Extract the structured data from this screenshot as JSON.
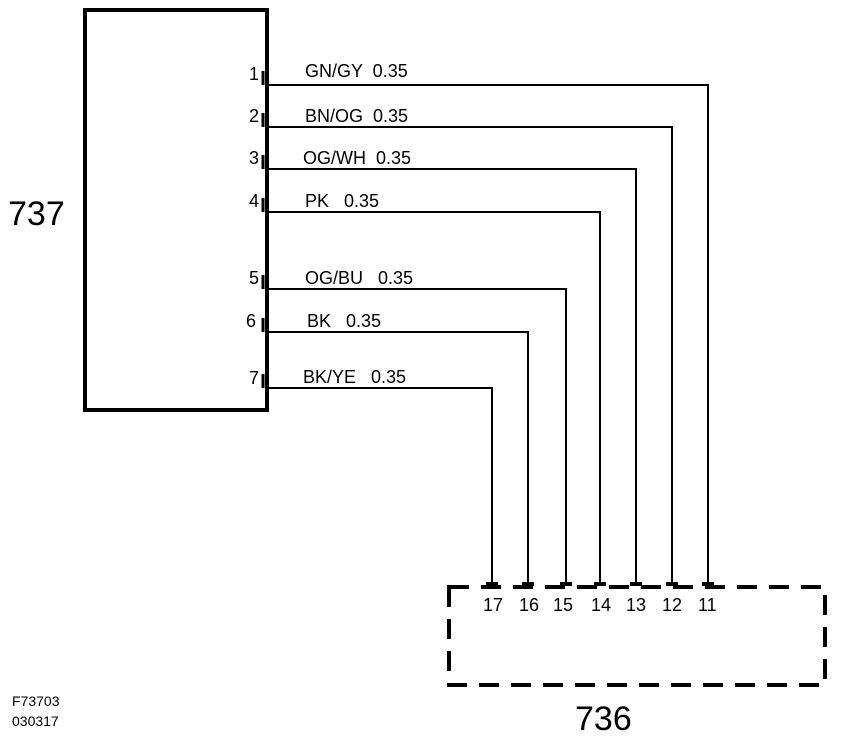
{
  "diagram": {
    "component_737": {
      "label": "737"
    },
    "component_736": {
      "label": "736"
    },
    "wires": [
      {
        "pin": "1",
        "label": "GN/GY  0.35",
        "terminal": "11"
      },
      {
        "pin": "2",
        "label": "BN/OG  0.35",
        "terminal": "12"
      },
      {
        "pin": "3",
        "label": "OG/WH  0.35",
        "terminal": "13"
      },
      {
        "pin": "4",
        "label": "PK   0.35",
        "terminal": "14"
      },
      {
        "pin": "5",
        "label": "OG/BU   0.35",
        "terminal": "15"
      },
      {
        "pin": "6",
        "label": "BK   0.35",
        "terminal": "16"
      },
      {
        "pin": "7",
        "label": "BK/YE   0.35",
        "terminal": "17"
      }
    ],
    "figure_code": "F73703",
    "figure_date": "030317"
  }
}
